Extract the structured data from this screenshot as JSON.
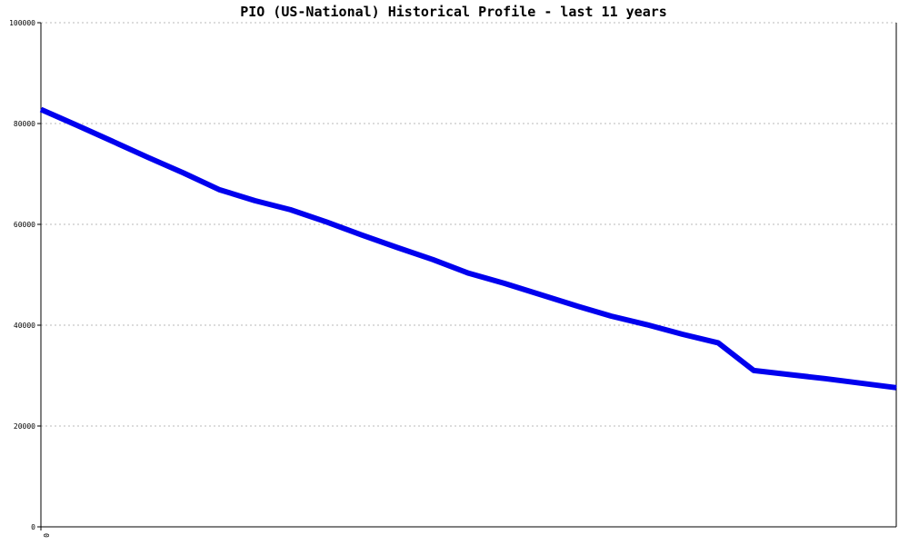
{
  "chart_data": {
    "type": "line",
    "title": "PIO (US-National) Historical Profile - last 11 years",
    "xlabel": "",
    "ylabel": "",
    "ylim": [
      0,
      100000
    ],
    "y_ticks": [
      0,
      20000,
      40000,
      60000,
      80000,
      100000
    ],
    "x_tick_labels": [
      "0"
    ],
    "grid": true,
    "legend": "none",
    "series": [
      {
        "color": "#0000ee",
        "values": [
          82800,
          79700,
          76500,
          73300,
          70200,
          66900,
          64700,
          62900,
          60500,
          57900,
          55400,
          53000,
          50300,
          48300,
          46100,
          43900,
          41800,
          40100,
          38200,
          36500,
          31000,
          30200,
          29400,
          28500,
          27600
        ]
      }
    ]
  }
}
